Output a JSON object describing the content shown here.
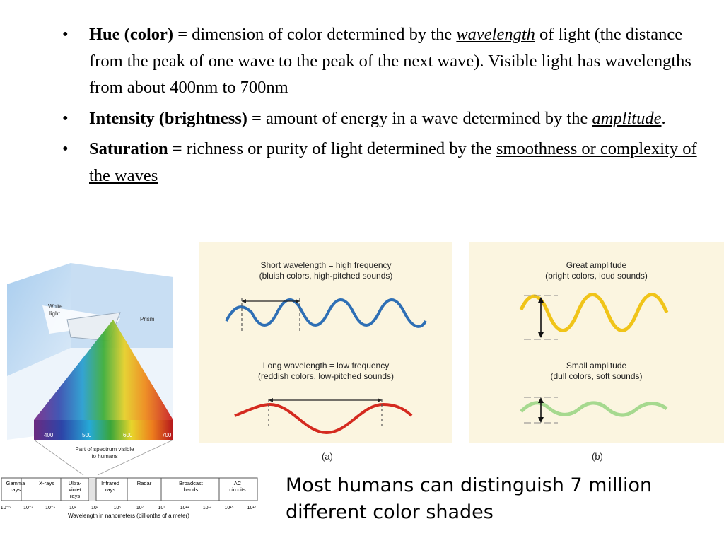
{
  "bullets": [
    {
      "term": "Hue (color)",
      "text1": " = dimension of color determined by the ",
      "em": "wavelength",
      "text2": " of light (the distance from the peak of one wave to the peak of the next wave).  Visible light has wavelengths from about 400nm to 700nm"
    },
    {
      "term": "Intensity (brightness)",
      "text1": " = amount of energy in a wave determined by the ",
      "em": "amplitude",
      "text2": "."
    },
    {
      "term": "Saturation",
      "text1": "  = richness or purity of light determined by the ",
      "u": "smoothness or complexity of the waves"
    }
  ],
  "bullet_symbol": "•",
  "prism": {
    "white_light": [
      "White",
      "light"
    ],
    "prism_label": "Prism",
    "spectrum_ticks": [
      "400",
      "500",
      "600",
      "700"
    ],
    "caption": [
      "Part of spectrum visible",
      "to humans"
    ]
  },
  "panel_a": {
    "short_caption": [
      "Short wavelength = high frequency",
      "(bluish colors, high-pitched sounds)"
    ],
    "long_caption": [
      "Long wavelength = low frequency",
      "(reddish colors, low-pitched sounds)"
    ],
    "label": "(a)"
  },
  "panel_b": {
    "great_caption": [
      "Great amplitude",
      "(bright colors, loud sounds)"
    ],
    "small_caption": [
      "Small amplitude",
      "(dull colors, soft sounds)"
    ],
    "label": "(b)"
  },
  "scale": {
    "bands": [
      [
        "Gamma",
        "rays"
      ],
      [
        "X-rays"
      ],
      [
        "Ultra-",
        "violet",
        "rays"
      ],
      [
        "Infrared",
        "rays"
      ],
      [
        "Radar"
      ],
      [
        "Broadcast",
        "bands"
      ],
      [
        "AC",
        "circuits"
      ]
    ],
    "ticks": [
      "10⁻⁵",
      "10⁻³",
      "10⁻¹",
      "10¹",
      "10³",
      "10⁵",
      "10⁷",
      "10⁹",
      "10¹¹",
      "10¹³",
      "10¹⁵",
      "10¹⁷"
    ],
    "axis_label": "Wavelength in nanometers (billionths of a meter)"
  },
  "note": "Most humans can distinguish 7 million different color shades",
  "colors": {
    "panel_bg": "#fbf5e0",
    "blue_wave": "#2e6fb5",
    "red_wave": "#d42a1f",
    "yellow_wave": "#f0c419",
    "green_wave": "#a6d98f"
  }
}
